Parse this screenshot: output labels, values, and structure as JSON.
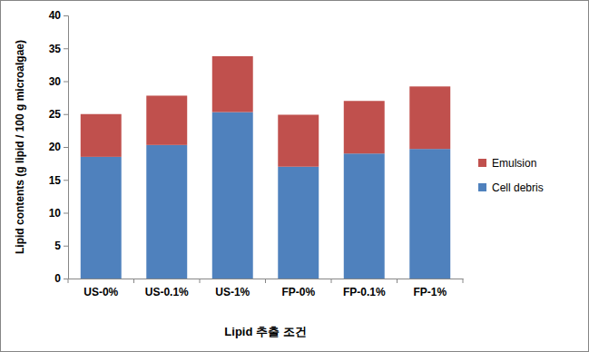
{
  "chart_data": {
    "type": "bar",
    "stacked": true,
    "x_label": "Lipid 추출 조건",
    "y_label": "Lipid contents (g lipid / 100 g microalgae)",
    "categories": [
      "US-0%",
      "US-0.1%",
      "US-1%",
      "FP-0%",
      "FP-0.1%",
      "FP-1%"
    ],
    "series": [
      {
        "name": "Cell debris",
        "color": "#4f81bd",
        "values": [
          18.5,
          20.3,
          25.3,
          17.0,
          19.0,
          19.7
        ]
      },
      {
        "name": "Emulsion",
        "color": "#c0504d",
        "values": [
          6.5,
          7.5,
          8.5,
          7.9,
          8.0,
          9.5
        ]
      }
    ],
    "ylim": [
      0,
      40
    ],
    "yticks": [
      0,
      5,
      10,
      15,
      20,
      25,
      30,
      35,
      40
    ],
    "grid": false,
    "legend": "right"
  }
}
